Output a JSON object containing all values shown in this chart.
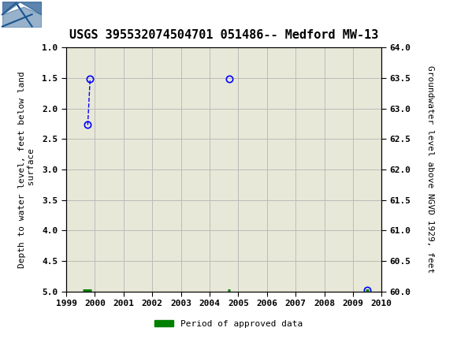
{
  "title": "USGS 395532074504701 051486-- Medford MW-13",
  "ylabel_left": "Depth to water level, feet below land\n surface",
  "ylabel_right": "Groundwater level above NGVD 1929, feet",
  "xlabel": "",
  "ylim_left": [
    5.0,
    1.0
  ],
  "ylim_right": [
    60.0,
    64.0
  ],
  "xlim_years": [
    1999,
    2010
  ],
  "yticks_left": [
    1.0,
    1.5,
    2.0,
    2.5,
    3.0,
    3.5,
    4.0,
    4.5,
    5.0
  ],
  "yticks_right": [
    60.0,
    60.5,
    61.0,
    61.5,
    62.0,
    62.5,
    63.0,
    63.5,
    64.0
  ],
  "xticks": [
    1999,
    2000,
    2001,
    2002,
    2003,
    2004,
    2005,
    2006,
    2007,
    2008,
    2009,
    2010
  ],
  "data_points_x": [
    1999.75,
    1999.83,
    2004.7,
    2009.5
  ],
  "data_points_y": [
    2.27,
    1.52,
    1.52,
    4.98
  ],
  "data_color": "#0000ff",
  "line_style": "--",
  "marker_style": "o",
  "marker_facecolor": "none",
  "approved_segments": [
    {
      "x_start": 1999.58,
      "x_end": 1999.87,
      "y": 5.0
    },
    {
      "x_start": 2004.64,
      "x_end": 2004.72,
      "y": 5.0
    },
    {
      "x_start": 2009.44,
      "x_end": 2009.56,
      "y": 5.0
    }
  ],
  "approved_color": "#008000",
  "approved_linewidth": 5,
  "header_color": "#006633",
  "background_color": "#e8e8d8",
  "grid_color": "#bbbbbb",
  "title_fontsize": 11,
  "axis_label_fontsize": 8,
  "tick_fontsize": 8,
  "legend_label": "Period of approved data"
}
